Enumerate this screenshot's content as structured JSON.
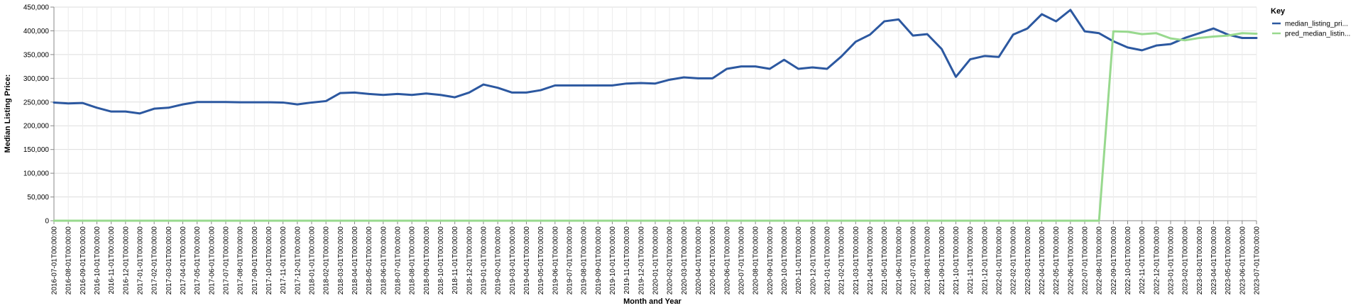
{
  "chart_data": {
    "type": "line",
    "xlabel": "Month and Year",
    "ylabel": "Median Listing Price:",
    "ylim": [
      0,
      450000
    ],
    "yticks": [
      "0",
      "50,000",
      "100,000",
      "150,000",
      "200,000",
      "250,000",
      "300,000",
      "350,000",
      "400,000",
      "450,000"
    ],
    "grid": true,
    "legend_placement": "top-right",
    "legend_title": "Key",
    "categories": [
      "2016-07-01T00:00:00",
      "2016-08-01T00:00:00",
      "2016-09-01T00:00:00",
      "2016-10-01T00:00:00",
      "2016-11-01T00:00:00",
      "2016-12-01T00:00:00",
      "2017-01-01T00:00:00",
      "2017-02-01T00:00:00",
      "2017-03-01T00:00:00",
      "2017-04-01T00:00:00",
      "2017-05-01T00:00:00",
      "2017-06-01T00:00:00",
      "2017-07-01T00:00:00",
      "2017-08-01T00:00:00",
      "2017-09-01T00:00:00",
      "2017-10-01T00:00:00",
      "2017-11-01T00:00:00",
      "2017-12-01T00:00:00",
      "2018-01-01T00:00:00",
      "2018-02-01T00:00:00",
      "2018-03-01T00:00:00",
      "2018-04-01T00:00:00",
      "2018-05-01T00:00:00",
      "2018-06-01T00:00:00",
      "2018-07-01T00:00:00",
      "2018-08-01T00:00:00",
      "2018-09-01T00:00:00",
      "2018-10-01T00:00:00",
      "2018-11-01T00:00:00",
      "2018-12-01T00:00:00",
      "2019-01-01T00:00:00",
      "2019-02-01T00:00:00",
      "2019-03-01T00:00:00",
      "2019-04-01T00:00:00",
      "2019-05-01T00:00:00",
      "2019-06-01T00:00:00",
      "2019-07-01T00:00:00",
      "2019-08-01T00:00:00",
      "2019-09-01T00:00:00",
      "2019-10-01T00:00:00",
      "2019-11-01T00:00:00",
      "2019-12-01T00:00:00",
      "2020-01-01T00:00:00",
      "2020-02-01T00:00:00",
      "2020-03-01T00:00:00",
      "2020-04-01T00:00:00",
      "2020-05-01T00:00:00",
      "2020-06-01T00:00:00",
      "2020-07-01T00:00:00",
      "2020-08-01T00:00:00",
      "2020-09-01T00:00:00",
      "2020-10-01T00:00:00",
      "2020-11-01T00:00:00",
      "2020-12-01T00:00:00",
      "2021-01-01T00:00:00",
      "2021-02-01T00:00:00",
      "2021-03-01T00:00:00",
      "2021-04-01T00:00:00",
      "2021-05-01T00:00:00",
      "2021-06-01T00:00:00",
      "2021-07-01T00:00:00",
      "2021-08-01T00:00:00",
      "2021-09-01T00:00:00",
      "2021-10-01T00:00:00",
      "2021-11-01T00:00:00",
      "2021-12-01T00:00:00",
      "2022-01-01T00:00:00",
      "2022-02-01T00:00:00",
      "2022-03-01T00:00:00",
      "2022-04-01T00:00:00",
      "2022-05-01T00:00:00",
      "2022-06-01T00:00:00",
      "2022-07-01T00:00:00",
      "2022-08-01T00:00:00",
      "2022-09-01T00:00:00",
      "2022-10-01T00:00:00",
      "2022-11-01T00:00:00",
      "2022-12-01T00:00:00",
      "2023-01-01T00:00:00",
      "2023-02-01T00:00:00",
      "2023-03-01T00:00:00",
      "2023-04-01T00:00:00",
      "2023-05-01T00:00:00",
      "2023-06-01T00:00:00",
      "2023-07-01T00:00:00"
    ],
    "series": [
      {
        "name": "median_listing_pri...",
        "color": "#2c58a0",
        "values": [
          249000,
          247000,
          248000,
          238000,
          230000,
          230000,
          226000,
          236000,
          238000,
          245000,
          250000,
          250000,
          250000,
          249500,
          249500,
          249500,
          249000,
          245000,
          249000,
          252000,
          269000,
          270000,
          267000,
          265000,
          267000,
          265000,
          268000,
          265000,
          260000,
          270000,
          287000,
          280000,
          270000,
          270000,
          275000,
          285000,
          285000,
          285000,
          285000,
          285000,
          289000,
          290000,
          289000,
          297000,
          302000,
          300000,
          300000,
          320000,
          325000,
          325000,
          320000,
          339000,
          320000,
          323000,
          320000,
          346000,
          377000,
          392000,
          420000,
          424000,
          390000,
          393000,
          362000,
          303000,
          340000,
          347000,
          345000,
          392000,
          405000,
          435000,
          420000,
          444000,
          399000,
          395000,
          378000,
          365000,
          359000,
          369000,
          372000,
          385000,
          395000,
          405000,
          392000,
          385000,
          385000
        ]
      },
      {
        "name": "pred_median_listin...",
        "color": "#98d98e",
        "values": [
          0,
          0,
          0,
          0,
          0,
          0,
          0,
          0,
          0,
          0,
          0,
          0,
          0,
          0,
          0,
          0,
          0,
          0,
          0,
          0,
          0,
          0,
          0,
          0,
          0,
          0,
          0,
          0,
          0,
          0,
          0,
          0,
          0,
          0,
          0,
          0,
          0,
          0,
          0,
          0,
          0,
          0,
          0,
          0,
          0,
          0,
          0,
          0,
          0,
          0,
          0,
          0,
          0,
          0,
          0,
          0,
          0,
          0,
          0,
          0,
          0,
          0,
          0,
          0,
          0,
          0,
          0,
          0,
          0,
          0,
          0,
          0,
          0,
          0,
          399000,
          398000,
          393000,
          395000,
          384000,
          380000,
          385000,
          388000,
          390000,
          395000,
          394000
        ]
      }
    ]
  }
}
